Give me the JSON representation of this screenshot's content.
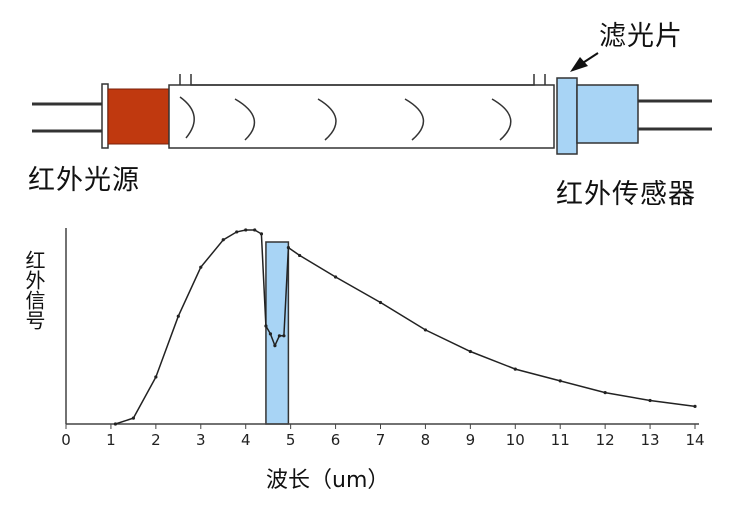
{
  "labels": {
    "source": "红外光源",
    "sensor": "红外传感器",
    "filter": "滤光片"
  },
  "colors": {
    "source_block": "#c0390f",
    "sensor_block": "#a8d4f5",
    "filter_band": "#a8d4f5",
    "curve": "#222222",
    "axis": "#444444"
  },
  "chart_data": {
    "type": "line",
    "title": "",
    "xlabel": "波长（um）",
    "ylabel": "红外信号",
    "xlim": [
      0,
      14
    ],
    "ylim": [
      0,
      100
    ],
    "xticks": [
      "0",
      "1",
      "2",
      "3",
      "4",
      "5",
      "6",
      "7",
      "8",
      "9",
      "10",
      "11",
      "12",
      "13",
      "14"
    ],
    "series": [
      {
        "x": [
          1.1,
          1.5,
          2.0,
          2.5,
          3.0,
          3.5,
          3.8,
          4.0,
          4.2,
          4.35,
          4.45,
          4.55,
          4.65,
          4.75,
          4.85,
          4.95,
          5.2,
          6.0,
          7.0,
          8.0,
          9.0,
          10.0,
          11.0,
          12.0,
          13.0,
          14.0
        ],
        "y": [
          0,
          3,
          24,
          55,
          80,
          94,
          98,
          99,
          99,
          97,
          50,
          46,
          40,
          45,
          45,
          90,
          86,
          75,
          62,
          48,
          37,
          28,
          22,
          16,
          12,
          9
        ]
      }
    ],
    "filter_band": [
      4.45,
      4.95
    ]
  }
}
